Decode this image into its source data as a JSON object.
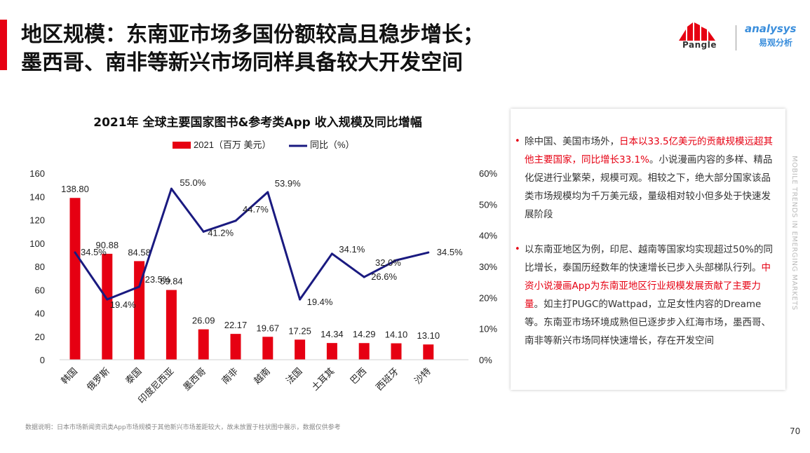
{
  "page": {
    "title_line1": "地区规模：东南亚市场多国份额较高且稳步增长；",
    "title_line2": "墨西哥、南非等新兴市场同样具备较大开发空间",
    "brand_pangle": "Pangle",
    "brand_analysys": "nalysys",
    "brand_analysys_prefix": "a",
    "brand_analysys_cn": "易观分析",
    "vertical_text": "MOBILE TRENDS IN EMERGING MARKETS",
    "footnote": "数据说明：日本市场新闻资讯类App市场规模于其他新兴市场差距较大，故未放置于柱状图中展示，数据仅供参考",
    "page_number": "70",
    "accent_color": "#e60012"
  },
  "chart_data": {
    "type": "bar",
    "title": "2021年 全球主要国家图书&参考类App 收入规模及同比增幅",
    "categories": [
      "韩国",
      "俄罗斯",
      "泰国",
      "印度尼西亚",
      "墨西哥",
      "南非",
      "越南",
      "法国",
      "土耳其",
      "巴西",
      "西班牙",
      "沙特"
    ],
    "series": [
      {
        "name": "2021（百万 美元）",
        "type": "bar",
        "axis": "left",
        "color": "#e60012",
        "values": [
          138.8,
          90.88,
          84.58,
          59.84,
          26.09,
          22.17,
          19.67,
          17.25,
          14.34,
          14.29,
          14.1,
          13.1
        ],
        "labels": [
          "138.80",
          "90.88",
          "84.58",
          "59.84",
          "26.09",
          "22.17",
          "19.67",
          "17.25",
          "14.34",
          "14.29",
          "14.10",
          "13.10"
        ]
      },
      {
        "name": "同比（%）",
        "type": "line",
        "axis": "right",
        "color": "#1a1a80",
        "values": [
          34.5,
          19.4,
          23.5,
          55.0,
          41.2,
          44.7,
          53.9,
          19.4,
          34.1,
          26.6,
          32.0,
          34.5
        ],
        "labels": [
          "34.5%",
          "19.4%",
          "23.5%",
          "55.0%",
          "41.2%",
          "44.7%",
          "53.9%",
          "19.4%",
          "34.1%",
          "26.6%",
          "32.0%",
          "34.5%"
        ]
      }
    ],
    "y_left": {
      "min": 0,
      "max": 160,
      "ticks": [
        "0",
        "20",
        "40",
        "60",
        "80",
        "100",
        "120",
        "140",
        "160"
      ]
    },
    "y_right": {
      "min": 0,
      "max": 60,
      "ticks": [
        "0%",
        "10%",
        "20%",
        "30%",
        "40%",
        "50%",
        "60%"
      ]
    },
    "grid": false,
    "legend": "top-center"
  },
  "panel": {
    "bullet1": {
      "pre": "除中国、美国市场外，",
      "hl": "日本以33.5亿美元的贡献规模远超其他主要国家，同比增长33.1%",
      "post": "。小说漫画内容的多样、精品化促进行业繁荣，规模可观。相较之下，绝大部分国家该品类市场规模均为千万美元级，量级相对较小但多处于快速发展阶段"
    },
    "bullet2": {
      "pre": "以东南亚地区为例，印尼、越南等国家均实现超过50%的同比增长，泰国历经数年的快速增长已步入头部梯队行列。",
      "hl": "中资小说漫画App为东南亚地区行业规模发展贡献了主要力量",
      "post": "。如主打PUGC的Wattpad，立足女性内容的Dreame等。东南亚市场环境成熟但已逐步步入红海市场，墨西哥、南非等新兴市场同样快速增长，存在开发空间"
    }
  }
}
